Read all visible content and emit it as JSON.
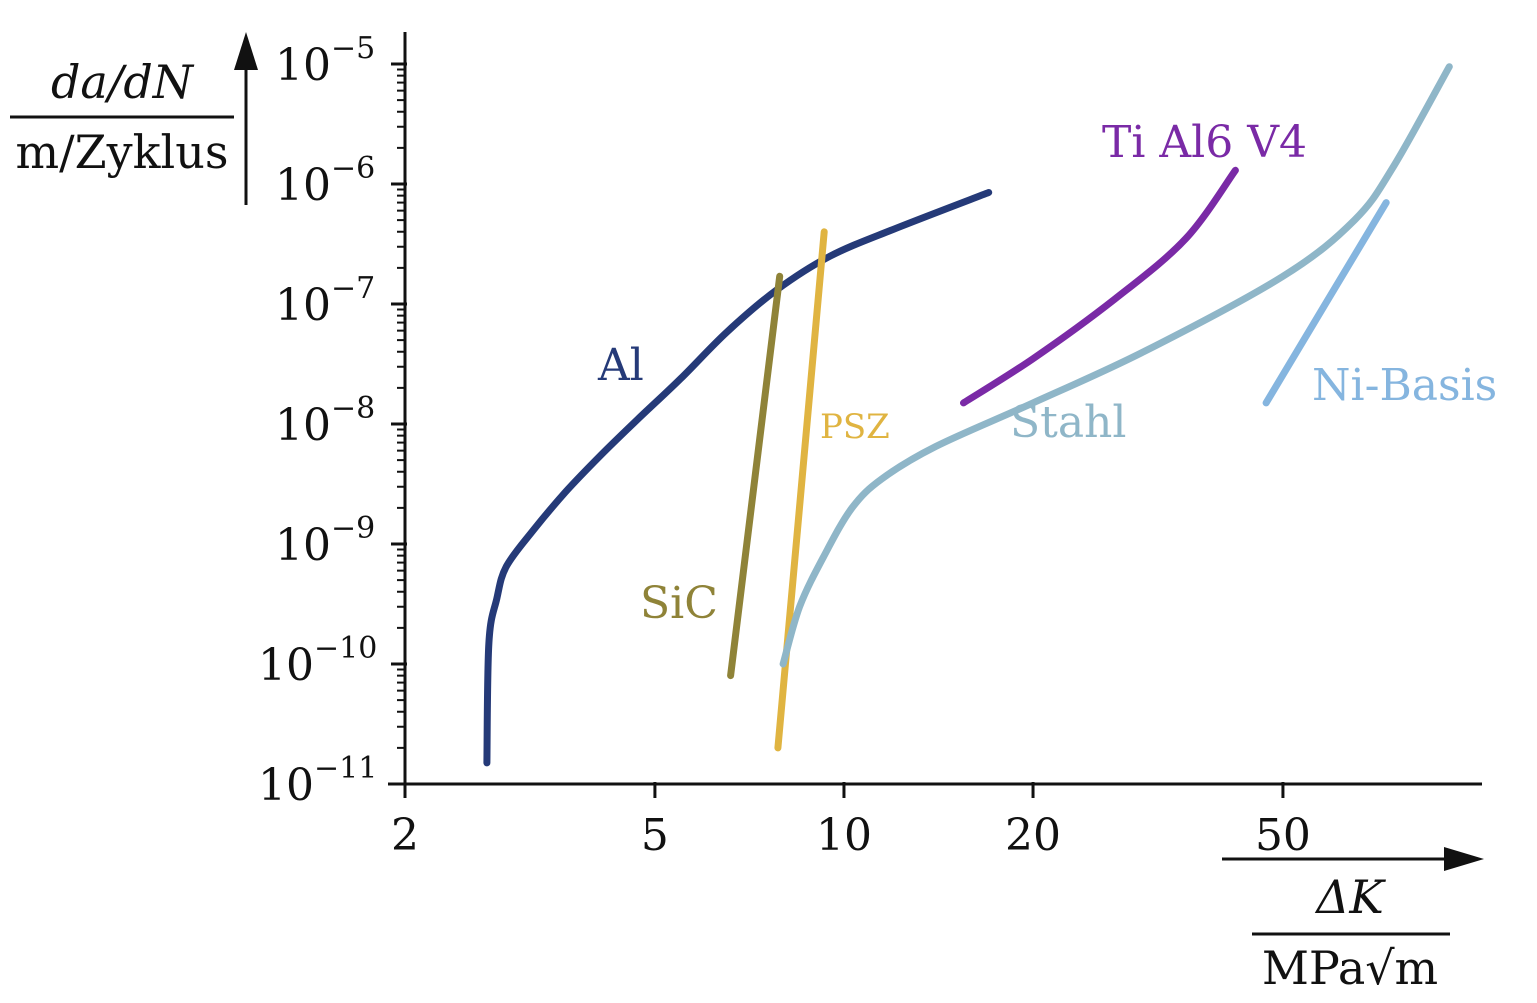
{
  "chart_data": {
    "type": "line",
    "x_scale": "log",
    "y_scale": "log",
    "xlim": [
      2,
      100
    ],
    "ylim": [
      1e-11,
      1e-05
    ],
    "x_ticks": [
      {
        "value": 2,
        "label": "2"
      },
      {
        "value": 5,
        "label": "5"
      },
      {
        "value": 10,
        "label": "10"
      },
      {
        "value": 20,
        "label": "20"
      },
      {
        "value": 50,
        "label": "50"
      }
    ],
    "y_ticks": [
      {
        "value": 1e-05,
        "base": "10",
        "exp": "−5"
      },
      {
        "value": 1e-06,
        "base": "10",
        "exp": "−6"
      },
      {
        "value": 1e-07,
        "base": "10",
        "exp": "−7"
      },
      {
        "value": 1e-08,
        "base": "10",
        "exp": "−8"
      },
      {
        "value": 1e-09,
        "base": "10",
        "exp": "−9"
      },
      {
        "value": 1e-10,
        "base": "10",
        "exp": "−10"
      },
      {
        "value": 1e-11,
        "base": "10",
        "exp": "−11"
      }
    ],
    "ylabel": {
      "numerator": "da/dN",
      "denominator": "m/Zyklus"
    },
    "xlabel": {
      "numerator": "ΔK",
      "denominator": "MPa√m"
    },
    "grid": false,
    "series": [
      {
        "name": "Al",
        "color": "#253a78",
        "points": [
          [
            2.7,
            1.5e-11
          ],
          [
            2.72,
            1.5e-10
          ],
          [
            2.8,
            3.5e-10
          ],
          [
            2.9,
            6.5e-10
          ],
          [
            3.2,
            1.3e-09
          ],
          [
            3.6,
            2.7e-09
          ],
          [
            4.1,
            5.5e-09
          ],
          [
            4.7,
            1.1e-08
          ],
          [
            5.5,
            2.4e-08
          ],
          [
            6.5,
            5.8e-08
          ],
          [
            7.8,
            1.3e-07
          ],
          [
            9.5,
            2.5e-07
          ],
          [
            12,
            4.2e-07
          ],
          [
            17,
            8.5e-07
          ]
        ]
      },
      {
        "name": "SiC",
        "color": "#8f8338",
        "points": [
          [
            6.6,
            8e-11
          ],
          [
            7.9,
            1.7e-07
          ]
        ]
      },
      {
        "name": "PSZ",
        "color": "#e0b441",
        "points": [
          [
            7.85,
            2e-11
          ],
          [
            9.3,
            4e-07
          ]
        ]
      },
      {
        "name": "Ti Al6 V4",
        "color": "#7a2aa6",
        "points": [
          [
            15.5,
            1.5e-08
          ],
          [
            20,
            3.5e-08
          ],
          [
            27,
            1.1e-07
          ],
          [
            35,
            3.5e-07
          ],
          [
            42,
            1.3e-06
          ]
        ]
      },
      {
        "name": "Stahl",
        "color": "#8fb6c8",
        "points": [
          [
            8,
            1e-10
          ],
          [
            8.5,
            3e-10
          ],
          [
            9.3,
            8e-10
          ],
          [
            10.3,
            2e-09
          ],
          [
            11.5,
            3.5e-09
          ],
          [
            14,
            6.5e-09
          ],
          [
            20,
            1.5e-08
          ],
          [
            30,
            4e-08
          ],
          [
            50,
            1.7e-07
          ],
          [
            65,
            5e-07
          ],
          [
            75,
            1.4e-06
          ],
          [
            92,
            9.5e-06
          ]
        ]
      },
      {
        "name": "Ni-Basis",
        "color": "#85b5df",
        "points": [
          [
            47,
            1.5e-08
          ],
          [
            73,
            7e-07
          ]
        ]
      }
    ]
  }
}
